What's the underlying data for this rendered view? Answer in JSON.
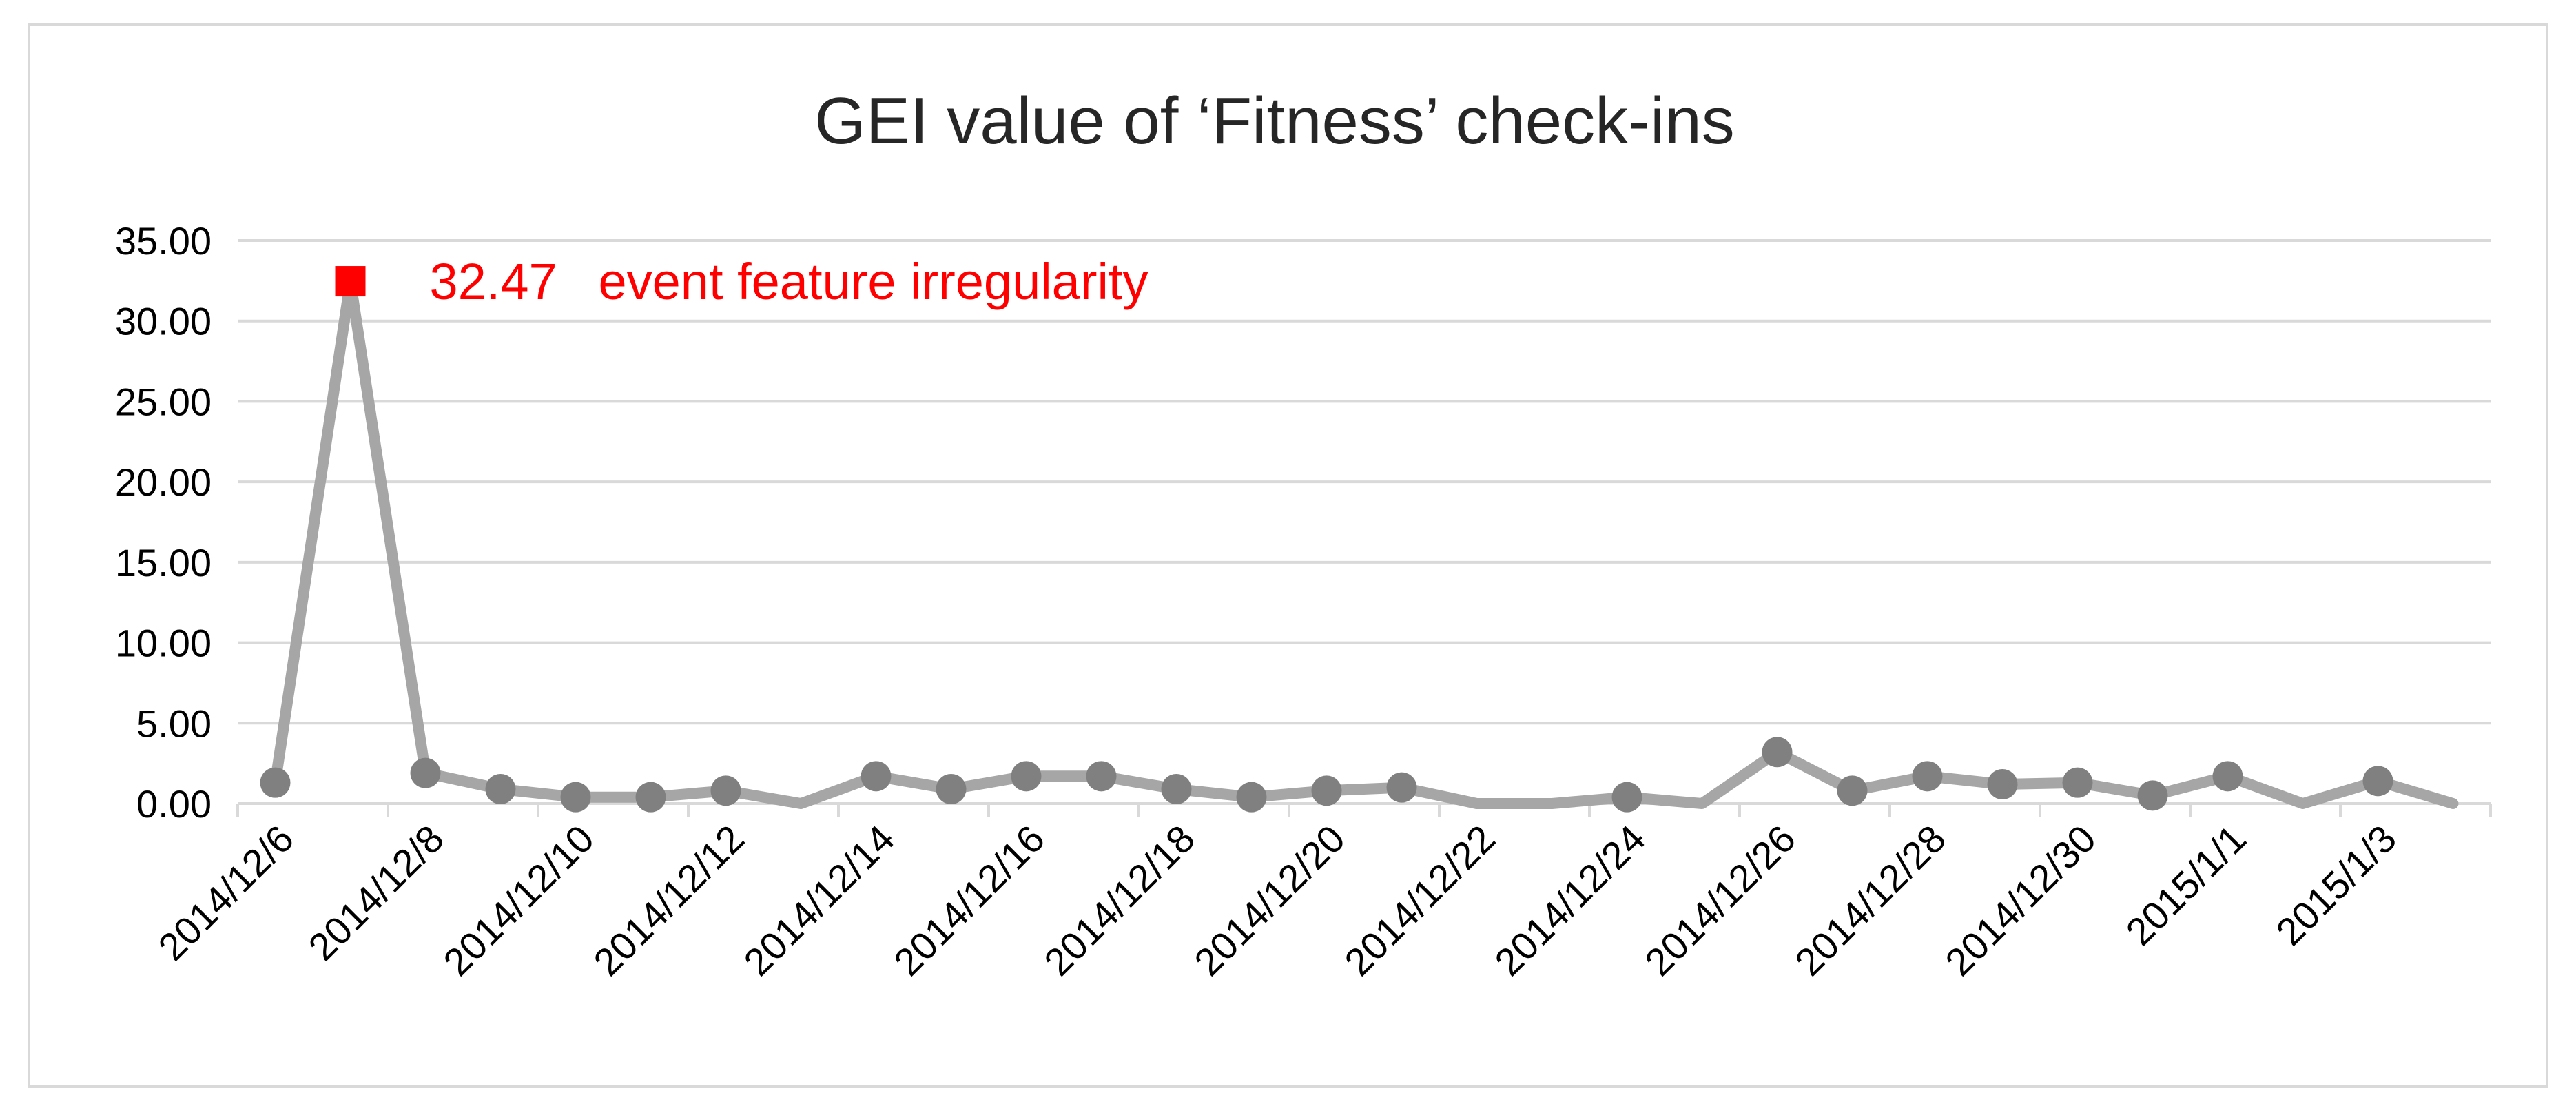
{
  "chart_data": {
    "type": "line",
    "title": "GEI value of ‘Fitness’ check-ins",
    "xlabel": "",
    "ylabel": "",
    "ylim": [
      0,
      35
    ],
    "y_ticks": [
      "0.00",
      "5.00",
      "10.00",
      "15.00",
      "20.00",
      "25.00",
      "30.00",
      "35.00"
    ],
    "x_tick_labels": [
      "2014/12/6",
      "2014/12/8",
      "2014/12/10",
      "2014/12/12",
      "2014/12/14",
      "2014/12/16",
      "2014/12/18",
      "2014/12/20",
      "2014/12/22",
      "2014/12/24",
      "2014/12/26",
      "2014/12/28",
      "2014/12/30",
      "2015/1/1",
      "2015/1/3"
    ],
    "x": [
      "2014/12/6",
      "2014/12/7",
      "2014/12/8",
      "2014/12/9",
      "2014/12/10",
      "2014/12/11",
      "2014/12/12",
      "2014/12/13",
      "2014/12/14",
      "2014/12/15",
      "2014/12/16",
      "2014/12/17",
      "2014/12/18",
      "2014/12/19",
      "2014/12/20",
      "2014/12/21",
      "2014/12/22",
      "2014/12/23",
      "2014/12/24",
      "2014/12/25",
      "2014/12/26",
      "2014/12/27",
      "2014/12/28",
      "2014/12/29",
      "2014/12/30",
      "2014/12/31",
      "2015/1/1",
      "2015/1/2",
      "2015/1/3",
      "2015/1/4"
    ],
    "series": [
      {
        "values": [
          1.3,
          32.47,
          1.9,
          0.9,
          0.4,
          0.4,
          0.8,
          0.0,
          1.7,
          0.9,
          1.7,
          1.7,
          0.9,
          0.4,
          0.8,
          1.0,
          0.0,
          0.0,
          0.4,
          0.0,
          3.2,
          0.8,
          1.7,
          1.2,
          1.3,
          0.5,
          1.7,
          0.0,
          1.4,
          0.0
        ],
        "markers": [
          true,
          false,
          true,
          true,
          true,
          true,
          true,
          false,
          true,
          true,
          true,
          true,
          true,
          true,
          true,
          true,
          false,
          false,
          true,
          false,
          true,
          true,
          true,
          true,
          true,
          true,
          true,
          false,
          true,
          false
        ]
      }
    ],
    "grid": true,
    "colors": {
      "line": "#a6a6a6",
      "marker": "#808080",
      "highlight": "#ff0000",
      "grid": "#d9d9d9"
    },
    "annotation": {
      "index": 1,
      "value": "32.47",
      "text": "event feature irregularity"
    }
  }
}
